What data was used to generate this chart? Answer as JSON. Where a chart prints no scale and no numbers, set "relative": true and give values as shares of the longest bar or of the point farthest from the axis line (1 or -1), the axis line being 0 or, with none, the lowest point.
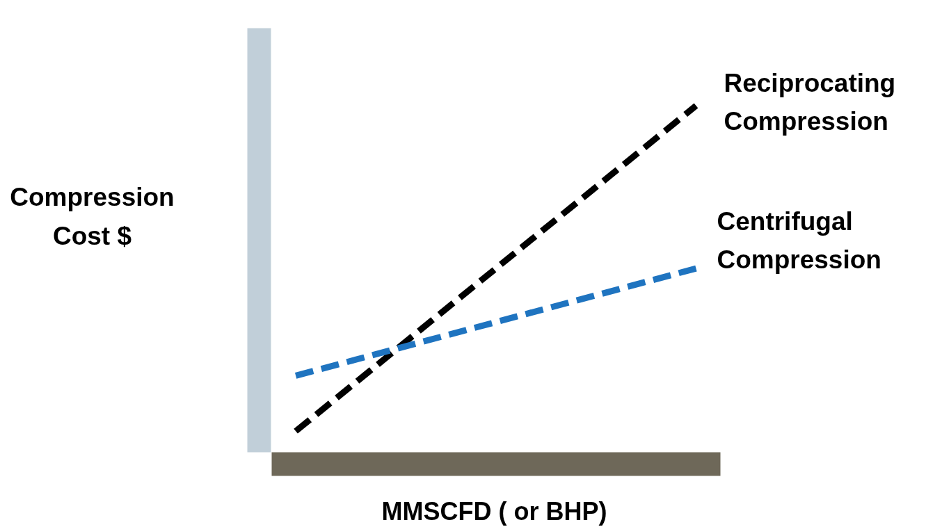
{
  "chart_data": {
    "type": "line",
    "relative": true,
    "xlabel": "MMSCFD ( or BHP)",
    "ylabel": "Compression Cost $",
    "categories": [
      null,
      null
    ],
    "line_style": "dashed",
    "tick_labels": false,
    "series": [
      {
        "name": "Reciprocating Compression",
        "color": "#000000",
        "values": [
          0.06,
          1
        ]
      },
      {
        "name": "Centrifugal Compression",
        "color": "#1f74c0",
        "values": [
          0.22,
          0.53
        ]
      }
    ]
  }
}
